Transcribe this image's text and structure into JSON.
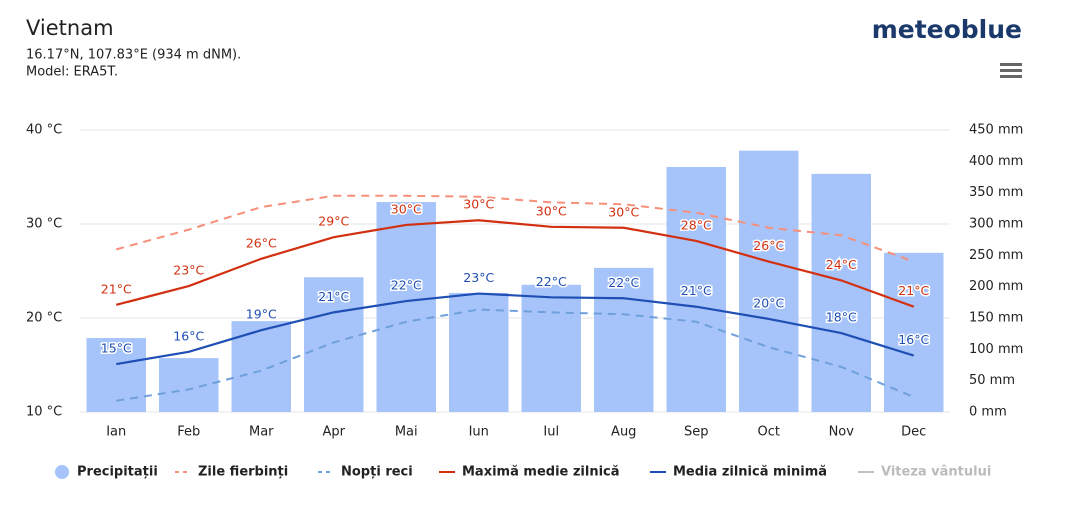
{
  "header": {
    "title": "Vietnam",
    "subtitle": "16.17°N, 107.83°E (934 m dNM).",
    "model": "Model: ERA5T.",
    "logo": "meteoblue"
  },
  "chart_data": {
    "type": "combo",
    "categories": [
      "Ian",
      "Feb",
      "Mar",
      "Apr",
      "Mai",
      "Iun",
      "Iul",
      "Aug",
      "Sep",
      "Oct",
      "Nov",
      "Dec"
    ],
    "ylim": [
      10,
      40
    ],
    "yticks": [
      {
        "value": 10,
        "label": "10 °C"
      },
      {
        "value": 20,
        "label": "20 °C"
      },
      {
        "value": 30,
        "label": "30 °C"
      },
      {
        "value": 40,
        "label": "40 °C"
      }
    ],
    "y2lim": [
      0,
      450
    ],
    "y2ticks": [
      {
        "value": 0,
        "label": "0 mm"
      },
      {
        "value": 50,
        "label": "50 mm"
      },
      {
        "value": 100,
        "label": "100 mm"
      },
      {
        "value": 150,
        "label": "150 mm"
      },
      {
        "value": 200,
        "label": "200 mm"
      },
      {
        "value": 250,
        "label": "250 mm"
      },
      {
        "value": 300,
        "label": "300 mm"
      },
      {
        "value": 350,
        "label": "350 mm"
      },
      {
        "value": 400,
        "label": "400 mm"
      },
      {
        "value": 450,
        "label": "450 mm"
      }
    ],
    "grid": true,
    "series": [
      {
        "name": "Precipitații",
        "type": "bar",
        "axis": "y2",
        "color": "#a6c4fa",
        "values": [
          118,
          86,
          145,
          215,
          335,
          190,
          203,
          230,
          391,
          417,
          380,
          254
        ]
      },
      {
        "name": "Zile fierbinți",
        "type": "line",
        "dash": true,
        "color": "#f6907a",
        "values": [
          27.3,
          29.4,
          31.8,
          33.0,
          33.0,
          32.9,
          32.3,
          32.1,
          31.2,
          29.6,
          28.8,
          26.0
        ]
      },
      {
        "name": "Nopți reci",
        "type": "line",
        "dash": true,
        "color": "#6fa0dc",
        "values": [
          11.2,
          12.4,
          14.4,
          17.4,
          19.6,
          20.9,
          20.6,
          20.4,
          19.6,
          16.9,
          14.8,
          11.6
        ]
      },
      {
        "name": "Maximă medie zilnică",
        "type": "line",
        "color": "#d23010",
        "values": [
          21.4,
          23.4,
          26.3,
          28.6,
          29.9,
          30.4,
          29.7,
          29.6,
          28.2,
          26.0,
          24.0,
          21.2
        ],
        "value_labels": [
          "21°C",
          "23°C",
          "26°C",
          "29°C",
          "30°C",
          "30°C",
          "30°C",
          "30°C",
          "28°C",
          "26°C",
          "24°C",
          "21°C"
        ]
      },
      {
        "name": "Media zilnică minimă",
        "type": "line",
        "color": "#1f4fb4",
        "values": [
          15.1,
          16.4,
          18.7,
          20.6,
          21.8,
          22.6,
          22.2,
          22.1,
          21.2,
          19.9,
          18.4,
          16.0
        ],
        "value_labels": [
          "15°C",
          "16°C",
          "19°C",
          "21°C",
          "22°C",
          "23°C",
          "22°C",
          "22°C",
          "21°C",
          "20°C",
          "18°C",
          "16°C"
        ]
      },
      {
        "name": "Viteza vântului",
        "type": "line",
        "color": "#c0c0c0"
      }
    ]
  }
}
